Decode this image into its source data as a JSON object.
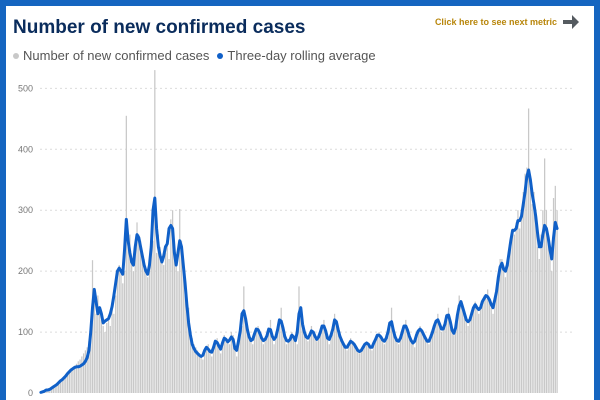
{
  "title": "Number of new confirmed cases",
  "next_metric_label": "Click here to see next metric",
  "colors": {
    "bar": "#c8c8c8",
    "line": "#1060c8",
    "frame": "#1565c0",
    "title": "#0a2c5c",
    "link": "#b8860b",
    "arrow": "#555b60"
  },
  "chart_data": {
    "type": "bar",
    "title": "Number of new confirmed cases",
    "xlabel": "",
    "ylabel": "",
    "ylim": [
      0,
      540
    ],
    "yticks": [
      0,
      100,
      200,
      300,
      400,
      500
    ],
    "grid": true,
    "legend": "top-left",
    "day_count": 300,
    "series": [
      {
        "name": "Number of new confirmed cases",
        "kind": "bar",
        "values": [
          1,
          2,
          3,
          5,
          5,
          6,
          8,
          10,
          12,
          14,
          17,
          20,
          22,
          25,
          28,
          32,
          35,
          38,
          42,
          45,
          48,
          52,
          55,
          60,
          65,
          70,
          75,
          85,
          100,
          218,
          150,
          130,
          160,
          140,
          120,
          110,
          100,
          115,
          125,
          110,
          150,
          130,
          160,
          190,
          210,
          200,
          180,
          200,
          455,
          240,
          260,
          220,
          200,
          230,
          280,
          260,
          250,
          230,
          220,
          200,
          190,
          200,
          230,
          250,
          530,
          230,
          260,
          240,
          220,
          210,
          230,
          250,
          220,
          285,
          300,
          250,
          220,
          200,
          302,
          250,
          200,
          180,
          160,
          140,
          100,
          90,
          80,
          75,
          70,
          65,
          60,
          55,
          65,
          75,
          80,
          70,
          60,
          70,
          85,
          90,
          75,
          65,
          80,
          95,
          90,
          85,
          80,
          100,
          95,
          70,
          60,
          80,
          100,
          110,
          175,
          120,
          100,
          90,
          85,
          80,
          95,
          105,
          110,
          100,
          90,
          80,
          85,
          95,
          100,
          120,
          90,
          80,
          95,
          100,
          120,
          140,
          100,
          90,
          80,
          85,
          95,
          100,
          90,
          85,
          80,
          175,
          130,
          110,
          100,
          90,
          85,
          95,
          110,
          100,
          90,
          85,
          90,
          100,
          110,
          120,
          100,
          90,
          80,
          95,
          110,
          130,
          120,
          100,
          90,
          85,
          80,
          75,
          70,
          80,
          90,
          85,
          80,
          75,
          70,
          65,
          70,
          75,
          80,
          85,
          80,
          75,
          70,
          80,
          90,
          95,
          100,
          90,
          85,
          80,
          90,
          100,
          110,
          140,
          100,
          90,
          85,
          80,
          90,
          100,
          110,
          120,
          100,
          90,
          85,
          80,
          75,
          90,
          100,
          110,
          100,
          95,
          90,
          85,
          80,
          90,
          100,
          110,
          120,
          130,
          110,
          100,
          105,
          110,
          130,
          140,
          110,
          100,
          95,
          105,
          120,
          160,
          150,
          140,
          130,
          120,
          110,
          120,
          130,
          140,
          150,
          140,
          130,
          140,
          150,
          160,
          155,
          170,
          150,
          140,
          130,
          150,
          170,
          180,
          220,
          220,
          200,
          190,
          210,
          230,
          250,
          270,
          260,
          280,
          300,
          270,
          300,
          330,
          360,
          370,
          467,
          340,
          310,
          330,
          290,
          240,
          220,
          260,
          300,
          385,
          300,
          260,
          230,
          200,
          320,
          340,
          300
        ],
        "color": "#c8c8c8"
      },
      {
        "name": "Three-day rolling average",
        "kind": "line",
        "values": [
          1,
          2,
          3,
          5,
          5,
          6,
          8,
          10,
          12,
          14,
          17,
          20,
          22,
          25,
          28,
          32,
          35,
          38,
          40,
          42,
          43,
          43,
          44,
          46,
          48,
          52,
          58,
          70,
          100,
          140,
          170,
          150,
          130,
          140,
          130,
          115,
          118,
          120,
          122,
          130,
          142,
          160,
          180,
          200,
          205,
          200,
          195,
          235,
          285,
          250,
          230,
          215,
          210,
          240,
          260,
          255,
          240,
          225,
          210,
          200,
          195,
          210,
          240,
          300,
          320,
          270,
          240,
          225,
          215,
          225,
          240,
          245,
          270,
          275,
          270,
          230,
          210,
          230,
          250,
          240,
          210,
          180,
          145,
          115,
          95,
          80,
          73,
          68,
          65,
          62,
          60,
          62,
          70,
          75,
          72,
          68,
          67,
          75,
          85,
          83,
          77,
          72,
          82,
          90,
          88,
          84,
          87,
          92,
          88,
          73,
          70,
          85,
          102,
          130,
          135,
          122,
          104,
          92,
          86,
          88,
          97,
          105,
          104,
          98,
          90,
          86,
          88,
          94,
          105,
          104,
          93,
          88,
          92,
          104,
          120,
          118,
          107,
          93,
          86,
          85,
          88,
          95,
          92,
          86,
          100,
          130,
          140,
          113,
          100,
          92,
          90,
          95,
          102,
          100,
          93,
          88,
          92,
          100,
          110,
          110,
          102,
          90,
          88,
          95,
          105,
          120,
          117,
          104,
          93,
          86,
          80,
          75,
          75,
          80,
          85,
          83,
          80,
          75,
          70,
          68,
          70,
          75,
          80,
          82,
          80,
          75,
          75,
          82,
          88,
          95,
          95,
          92,
          87,
          85,
          90,
          100,
          115,
          117,
          103,
          92,
          86,
          85,
          90,
          100,
          110,
          110,
          103,
          93,
          86,
          82,
          85,
          95,
          102,
          105,
          102,
          96,
          90,
          85,
          85,
          92,
          100,
          110,
          118,
          120,
          113,
          105,
          105,
          113,
          127,
          128,
          117,
          103,
          98,
          107,
          128,
          143,
          150,
          140,
          130,
          120,
          117,
          120,
          130,
          140,
          145,
          140,
          137,
          140,
          150,
          155,
          160,
          158,
          153,
          145,
          140,
          153,
          167,
          190,
          207,
          213,
          203,
          200,
          210,
          230,
          250,
          267,
          267,
          270,
          283,
          283,
          290,
          310,
          330,
          355,
          366,
          350,
          327,
          310,
          290,
          263,
          240,
          240,
          260,
          275,
          270,
          255,
          235,
          220,
          255,
          280,
          270
        ],
        "color": "#1060c8"
      }
    ]
  }
}
